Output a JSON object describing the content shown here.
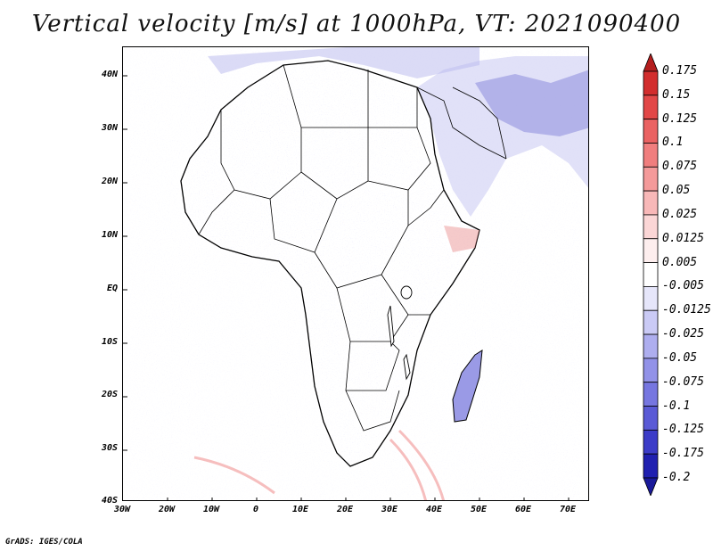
{
  "title": "Vertical velocity [m/s] at 1000hPa, VT: 2021090400",
  "map": {
    "region": "Africa and Middle East",
    "variable": "Vertical velocity",
    "units": "m/s",
    "level": "1000hPa",
    "valid_time": "2021090400",
    "lat_labels": [
      "40N",
      "30N",
      "20N",
      "10N",
      "EQ",
      "10S",
      "20S",
      "30S",
      "40S"
    ],
    "lon_labels": [
      "30W",
      "20W",
      "10W",
      "0",
      "10E",
      "20E",
      "30E",
      "40E",
      "50E",
      "60E",
      "70E"
    ]
  },
  "colorbar": {
    "levels": [
      "0.175",
      "0.15",
      "0.125",
      "0.1",
      "0.075",
      "0.05",
      "0.025",
      "0.0125",
      "0.005",
      "-0.005",
      "-0.0125",
      "-0.025",
      "-0.05",
      "-0.075",
      "-0.1",
      "-0.125",
      "-0.175",
      "-0.2"
    ],
    "colors": [
      "#b41e1e",
      "#d22d2d",
      "#e24747",
      "#ea6262",
      "#f07e7e",
      "#f49a9a",
      "#f8b8b8",
      "#fbd6d6",
      "#fdeeee",
      "#ffffff",
      "#e6e6fa",
      "#cacaf5",
      "#aeaeef",
      "#9292e8",
      "#7676e0",
      "#5a5ad6",
      "#3c3cc8",
      "#2020b0",
      "#1a1a9a"
    ]
  },
  "credit": "GrADS: IGES/COLA"
}
